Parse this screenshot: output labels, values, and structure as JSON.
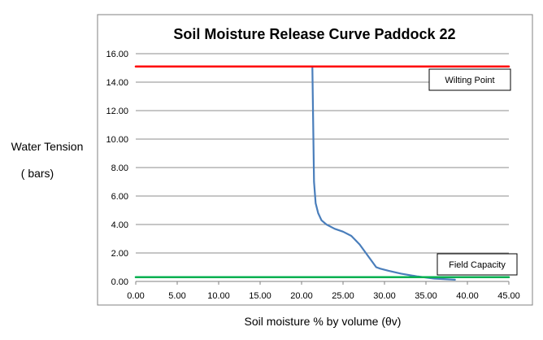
{
  "chart_data": {
    "type": "line",
    "title": "Soil Moisture Release Curve Paddock 22",
    "xlabel": "Soil moisture % by volume (θv)",
    "ylabel": "Water Tension",
    "ylabel_unit": "( bars)",
    "xlim": [
      0,
      45
    ],
    "ylim": [
      0,
      16
    ],
    "grid": true,
    "x_ticks": [
      "0.00",
      "5.00",
      "10.00",
      "15.00",
      "20.00",
      "25.00",
      "30.00",
      "35.00",
      "40.00",
      "45.00"
    ],
    "y_ticks": [
      "0.00",
      "2.00",
      "4.00",
      "6.00",
      "8.00",
      "10.00",
      "12.00",
      "14.00",
      "16.00"
    ],
    "series": [
      {
        "color": "#4a7ebb",
        "x": [
          21.3,
          21.5,
          21.7,
          22.0,
          22.4,
          23.0,
          24.0,
          25.0,
          26.0,
          27.0,
          28.0,
          29.0,
          29.5,
          30.5,
          32.0,
          34.0,
          36.0,
          38.5
        ],
        "y": [
          15.0,
          7.0,
          5.5,
          4.8,
          4.3,
          4.0,
          3.7,
          3.5,
          3.2,
          2.6,
          1.8,
          1.0,
          0.9,
          0.75,
          0.55,
          0.35,
          0.2,
          0.12
        ]
      },
      {
        "color": "#ff0000",
        "x": [
          0,
          45
        ],
        "y": [
          15.1,
          15.1
        ]
      },
      {
        "color": "#00b050",
        "x": [
          0,
          45
        ],
        "y": [
          0.3,
          0.3
        ]
      }
    ],
    "annotations": [
      {
        "text": "Wilting Point"
      },
      {
        "text": "Field Capacity"
      }
    ]
  }
}
